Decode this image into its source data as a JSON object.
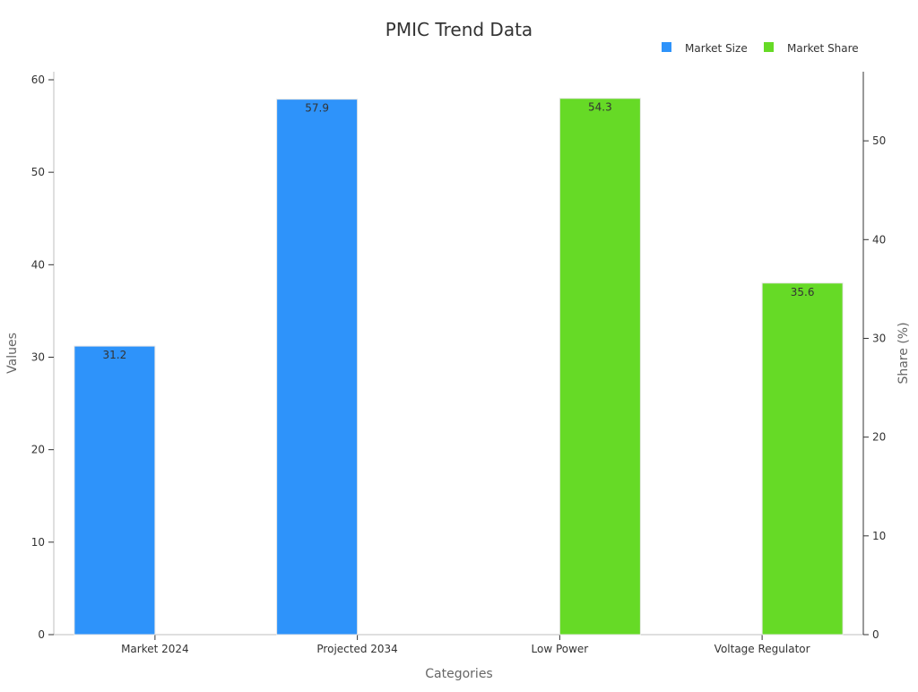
{
  "chart_data": {
    "type": "bar",
    "title": "PMIC Trend Data",
    "xlabel": "Categories",
    "ylabel": "Values",
    "y2label": "Share (%)",
    "categories": [
      "Market 2024",
      "Projected 2034",
      "Low Power",
      "Voltage Regulator"
    ],
    "ylim": [
      0,
      60
    ],
    "y2lim": [
      0,
      57
    ],
    "yticks": [
      0,
      10,
      20,
      30,
      40,
      50,
      60
    ],
    "y2ticks": [
      0,
      10,
      20,
      30,
      40,
      50
    ],
    "grid": false,
    "legend_position": "top-right",
    "series": [
      {
        "name": "Market Size",
        "axis": "left",
        "color": "#2e93fa",
        "values": [
          31.2,
          57.9,
          null,
          null
        ]
      },
      {
        "name": "Market Share",
        "axis": "right",
        "color": "#66da26",
        "values": [
          null,
          null,
          54.3,
          35.6
        ]
      }
    ]
  }
}
